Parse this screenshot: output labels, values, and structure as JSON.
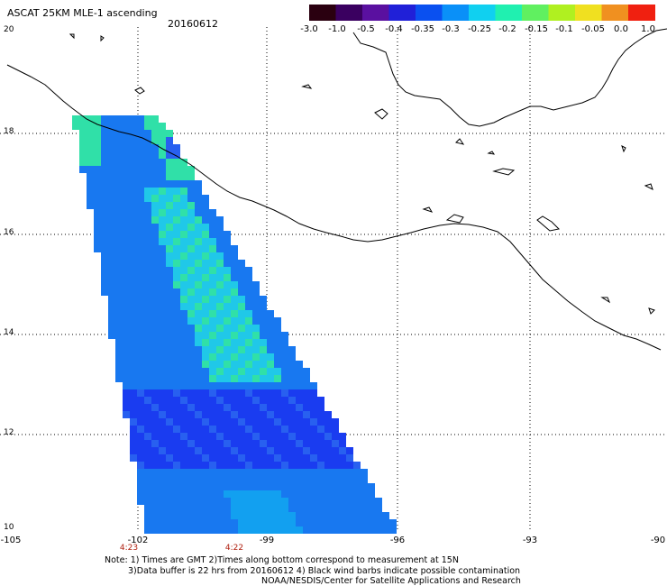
{
  "header": {
    "title": "ASCAT 25KM MLE-1 ascending",
    "date": "20160612"
  },
  "colorbar": {
    "labels": [
      "-3.0",
      "-1.0",
      "-0.5",
      "-0.4",
      "-0.35",
      "-0.3",
      "-0.25",
      "-0.2",
      "-0.15",
      "-0.1",
      "-0.05",
      "0.0",
      "1.0"
    ],
    "colors": [
      "#2a0010",
      "#3a0060",
      "#5a10a0",
      "#2020d8",
      "#0a50f0",
      "#0a90f8",
      "#10d0f0",
      "#20f0b0",
      "#60f060",
      "#b0f020",
      "#f0e020",
      "#f09020",
      "#f02010"
    ]
  },
  "axes": {
    "lat_labels": [
      "20",
      "18",
      "16",
      "14",
      "12",
      "10"
    ],
    "lon_labels": [
      "-105",
      "-102",
      "-99",
      "-96",
      "-93",
      "-90"
    ],
    "time_labels": [
      "4:23",
      "4:22"
    ]
  },
  "notes": {
    "line1": "Note: 1) Times are GMT 2)Times along bottom correspond to measurement at 15N",
    "line2": "3)Data buffer is 22 hrs from 20160612 4) Black wind barbs indicate possible contamination",
    "line3": "NOAA/NESDIS/Center for Satellite Applications and Research"
  }
}
